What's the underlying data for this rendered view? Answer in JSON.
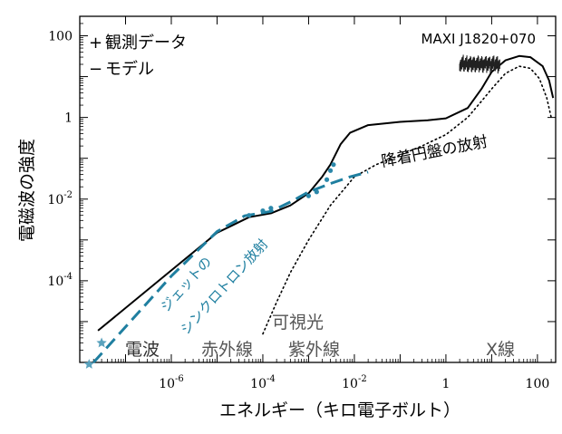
{
  "chart_data": {
    "type": "line",
    "title": "MAXI J1820+070",
    "xlabel": "エネルギー（キロ電子ボルト）",
    "ylabel": "電磁波の強度",
    "x_scale": "log",
    "y_scale": "log",
    "xlim": [
      1e-08,
      250
    ],
    "ylim": [
      1e-06,
      300
    ],
    "x_ticks": [
      {
        "value": 1e-06,
        "base": "10",
        "exp": "-6"
      },
      {
        "value": 0.0001,
        "base": "10",
        "exp": "-4"
      },
      {
        "value": 0.01,
        "base": "10",
        "exp": "-2"
      },
      {
        "value": 1,
        "base": "1",
        "exp": ""
      },
      {
        "value": 100,
        "base": "100",
        "exp": ""
      }
    ],
    "y_ticks": [
      {
        "value": 0.0001,
        "base": "10",
        "exp": "-4"
      },
      {
        "value": 0.01,
        "base": "10",
        "exp": "-2"
      },
      {
        "value": 1,
        "base": "1",
        "exp": ""
      },
      {
        "value": 100,
        "base": "100",
        "exp": ""
      }
    ],
    "legend": {
      "placement": "top-left",
      "items": [
        {
          "symbol": "+",
          "label": "観測データ"
        },
        {
          "symbol": "−",
          "label": "モデル"
        }
      ]
    },
    "series": [
      {
        "role": "model-total",
        "style": "solid",
        "color": "#000000",
        "points": [
          [
            2.5e-08,
            6e-06
          ],
          [
            1e-06,
            0.00018
          ],
          [
            1e-05,
            0.0015
          ],
          [
            5e-05,
            0.0036
          ],
          [
            0.00015,
            0.0045
          ],
          [
            0.0004,
            0.007
          ],
          [
            0.001,
            0.014
          ],
          [
            0.002,
            0.036
          ],
          [
            0.003,
            0.07
          ],
          [
            0.005,
            0.22
          ],
          [
            0.008,
            0.42
          ],
          [
            0.02,
            0.65
          ],
          [
            0.1,
            0.78
          ],
          [
            0.4,
            0.85
          ],
          [
            1,
            0.95
          ],
          [
            3,
            1.7
          ],
          [
            6,
            5
          ],
          [
            10,
            13
          ],
          [
            20,
            25
          ],
          [
            40,
            32
          ],
          [
            70,
            30
          ],
          [
            130,
            18
          ],
          [
            180,
            8
          ],
          [
            220,
            3
          ]
        ]
      },
      {
        "role": "accretion-disk",
        "style": "dotted",
        "color": "#000000",
        "points": [
          [
            0.0001,
            5e-06
          ],
          [
            0.0002,
            3e-05
          ],
          [
            0.0004,
            0.00016
          ],
          [
            0.001,
            0.001
          ],
          [
            0.003,
            0.007
          ],
          [
            0.01,
            0.035
          ],
          [
            0.03,
            0.07
          ],
          [
            0.1,
            0.12
          ],
          [
            0.3,
            0.2
          ],
          [
            1,
            0.38
          ],
          [
            3,
            1
          ],
          [
            6,
            2.5
          ],
          [
            10,
            5
          ],
          [
            20,
            12
          ],
          [
            40,
            18
          ],
          [
            70,
            16
          ],
          [
            110,
            9
          ],
          [
            160,
            3
          ],
          [
            200,
            1
          ]
        ]
      },
      {
        "role": "jet-synchrotron",
        "style": "dashed",
        "color": "#1f7fa0",
        "points": [
          [
            2e-08,
            1e-06
          ],
          [
            1e-06,
            0.00013
          ],
          [
            1e-05,
            0.0016
          ],
          [
            4e-05,
            0.0039
          ],
          [
            0.00015,
            0.005
          ],
          [
            0.0004,
            0.0085
          ],
          [
            0.001,
            0.015
          ],
          [
            0.003,
            0.024
          ],
          [
            0.008,
            0.035
          ],
          [
            0.02,
            0.046
          ]
        ]
      }
    ],
    "observed_points": {
      "radio": [
        [
          1.6e-08,
          9e-07
        ],
        [
          3e-08,
          3e-06
        ]
      ],
      "infrared_optical": [
        [
          5e-05,
          0.004
        ],
        [
          0.0001,
          0.0052
        ],
        [
          0.00015,
          0.006
        ],
        [
          0.001,
          0.012
        ],
        [
          0.0015,
          0.015
        ],
        [
          0.0025,
          0.03
        ],
        [
          0.003,
          0.05
        ],
        [
          0.0035,
          0.07
        ]
      ],
      "xray_range": [
        2,
        15
      ],
      "xray_level": [
        17,
        24
      ]
    },
    "annotations": [
      {
        "text": "電波",
        "x": 1.2e-07,
        "y": 3e-06
      },
      {
        "text": "赤外線",
        "x": 3e-05,
        "y": 3e-06
      },
      {
        "text": "紫外線",
        "x": 0.001,
        "y": 3e-06
      },
      {
        "text": "可視光",
        "x": 0.0003,
        "y": 1e-05
      },
      {
        "text": "X線",
        "x": 8,
        "y": 3e-06
      },
      {
        "text": "降着円盤の放射",
        "x": 0.8,
        "y": 0.5
      },
      {
        "text": "ジェットの",
        "x": 1.2e-05,
        "y": 0.0001
      },
      {
        "text": "シンクロトロン放射",
        "x": 4e-05,
        "y": 0.00012
      }
    ]
  }
}
